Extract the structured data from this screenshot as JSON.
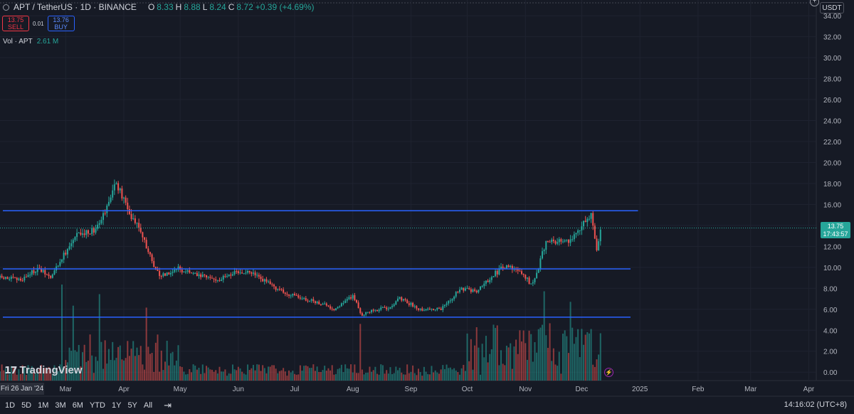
{
  "header": {
    "symbol": "APT / TetherUS · 1D · BINANCE",
    "open_label": "O",
    "open": "8.33",
    "high_label": "H",
    "high": "8.88",
    "low_label": "L",
    "low": "8.24",
    "close_label": "C",
    "close": "8.72",
    "change": "+0.39 (+4.69%)"
  },
  "trade": {
    "sell_price": "13.75",
    "sell_label": "SELL",
    "spread": "0.01",
    "buy_price": "13.76",
    "buy_label": "BUY"
  },
  "volume": {
    "label": "Vol · APT",
    "value": "2.61 M"
  },
  "currency": "USDT",
  "last_price": {
    "price": "13.75",
    "countdown": "17:43:57"
  },
  "cursor_date": "Fri 26 Jan '24",
  "logo": {
    "text": "TradingView"
  },
  "toolbar": {
    "ranges": [
      "1D",
      "5D",
      "1M",
      "3M",
      "6M",
      "YTD",
      "1Y",
      "5Y",
      "All"
    ],
    "clock": "14:16:02 (UTC+8)"
  },
  "colors": {
    "up": "#26a69a",
    "down": "#ef5350",
    "hline": "#2962ff",
    "background": "#161a25"
  },
  "icons": {
    "compare": "calendar-range-icon",
    "alert": "lightning-icon",
    "add": "plus-icon"
  },
  "chart_data": {
    "type": "candlestick",
    "x_axis": {
      "start": "2024-01-26",
      "tick_labels": [
        {
          "date": "2024-03-01",
          "label": "Mar"
        },
        {
          "date": "2024-04-01",
          "label": "Apr"
        },
        {
          "date": "2024-05-01",
          "label": "May"
        },
        {
          "date": "2024-06-01",
          "label": "Jun"
        },
        {
          "date": "2024-07-01",
          "label": "Jul"
        },
        {
          "date": "2024-08-01",
          "label": "Aug"
        },
        {
          "date": "2024-09-01",
          "label": "Sep"
        },
        {
          "date": "2024-10-01",
          "label": "Oct"
        },
        {
          "date": "2024-11-01",
          "label": "Nov"
        },
        {
          "date": "2024-12-01",
          "label": "Dec"
        },
        {
          "date": "2025-01-01",
          "label": "2025"
        },
        {
          "date": "2025-02-01",
          "label": "Feb"
        },
        {
          "date": "2025-03-01",
          "label": "Mar"
        },
        {
          "date": "2025-04-01",
          "label": "Apr"
        }
      ],
      "range": [
        "2024-01-26",
        "2025-04-05"
      ]
    },
    "y_axis": {
      "range": [
        -0.8,
        35.5
      ],
      "ticks": [
        "0.00",
        "2.00",
        "4.00",
        "6.00",
        "8.00",
        "10.00",
        "12.00",
        "14.00",
        "16.00",
        "18.00",
        "20.00",
        "22.00",
        "24.00",
        "26.00",
        "28.00",
        "30.00",
        "32.00",
        "34.00"
      ]
    },
    "grid": true,
    "horizontal_lines": [
      {
        "price": 15.4,
        "from": "2024-01-26",
        "to": "2024-12-31"
      },
      {
        "price": 9.85,
        "from": "2024-01-26",
        "to": "2024-12-27"
      },
      {
        "price": 5.25,
        "from": "2024-01-26",
        "to": "2024-12-27"
      }
    ],
    "price_path": [
      {
        "date": "2024-01-26",
        "price": 9.0
      },
      {
        "date": "2024-02-06",
        "price": 8.8
      },
      {
        "date": "2024-02-15",
        "price": 9.9
      },
      {
        "date": "2024-02-22",
        "price": 9.0
      },
      {
        "date": "2024-03-01",
        "price": 11.5
      },
      {
        "date": "2024-03-07",
        "price": 13.0
      },
      {
        "date": "2024-03-16",
        "price": 13.6
      },
      {
        "date": "2024-03-23",
        "price": 15.8
      },
      {
        "date": "2024-03-27",
        "price": 18.0
      },
      {
        "date": "2024-03-31",
        "price": 16.8
      },
      {
        "date": "2024-04-04",
        "price": 15.2
      },
      {
        "date": "2024-04-09",
        "price": 14.0
      },
      {
        "date": "2024-04-15",
        "price": 11.0
      },
      {
        "date": "2024-04-20",
        "price": 9.2
      },
      {
        "date": "2024-04-30",
        "price": 9.9
      },
      {
        "date": "2024-05-10",
        "price": 9.2
      },
      {
        "date": "2024-05-22",
        "price": 8.8
      },
      {
        "date": "2024-05-28",
        "price": 9.4
      },
      {
        "date": "2024-06-08",
        "price": 9.5
      },
      {
        "date": "2024-06-16",
        "price": 8.6
      },
      {
        "date": "2024-06-26",
        "price": 7.5
      },
      {
        "date": "2024-07-06",
        "price": 7.0
      },
      {
        "date": "2024-07-16",
        "price": 6.5
      },
      {
        "date": "2024-07-22",
        "price": 6.0
      },
      {
        "date": "2024-08-01",
        "price": 7.3
      },
      {
        "date": "2024-08-06",
        "price": 5.4
      },
      {
        "date": "2024-08-10",
        "price": 5.8
      },
      {
        "date": "2024-08-20",
        "price": 6.2
      },
      {
        "date": "2024-08-26",
        "price": 7.0
      },
      {
        "date": "2024-09-06",
        "price": 6.0
      },
      {
        "date": "2024-09-17",
        "price": 6.0
      },
      {
        "date": "2024-09-27",
        "price": 7.9
      },
      {
        "date": "2024-10-06",
        "price": 7.8
      },
      {
        "date": "2024-10-15",
        "price": 9.3
      },
      {
        "date": "2024-10-21",
        "price": 10.1
      },
      {
        "date": "2024-10-29",
        "price": 9.6
      },
      {
        "date": "2024-11-04",
        "price": 8.4
      },
      {
        "date": "2024-11-07",
        "price": 9.4
      },
      {
        "date": "2024-11-12",
        "price": 12.6
      },
      {
        "date": "2024-11-22",
        "price": 12.3
      },
      {
        "date": "2024-11-28",
        "price": 13.0
      },
      {
        "date": "2024-12-02",
        "price": 14.2
      },
      {
        "date": "2024-12-06",
        "price": 15.0
      },
      {
        "date": "2024-12-09",
        "price": 11.6
      },
      {
        "date": "2024-12-11",
        "price": 13.75
      }
    ],
    "volume": {
      "scale_note": "relative",
      "spikes": [
        {
          "date": "2024-02-28",
          "level": 1.0
        },
        {
          "date": "2024-03-05",
          "level": 0.78
        },
        {
          "date": "2024-03-19",
          "level": 0.9
        },
        {
          "date": "2024-04-13",
          "level": 0.76
        },
        {
          "date": "2024-08-05",
          "level": 0.59
        },
        {
          "date": "2024-11-11",
          "level": 0.93
        },
        {
          "date": "2024-11-25",
          "level": 0.82
        }
      ]
    }
  }
}
